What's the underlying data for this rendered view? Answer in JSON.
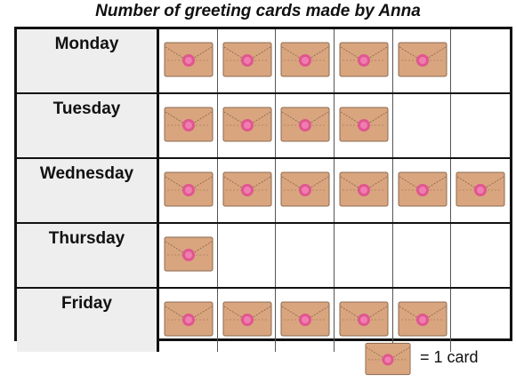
{
  "title": "Number of greeting cards made by Anna",
  "legend": {
    "text": "= 1 card",
    "icon": "envelope-icon"
  },
  "colors": {
    "envelope": "#d9a57f",
    "seal": "#e0568f",
    "stroke": "#8a6a4f",
    "day_bg": "#eeeeee"
  },
  "chart_data": {
    "type": "table",
    "kind": "pictograph",
    "title": "Number of greeting cards made by Anna",
    "categories": [
      "Monday",
      "Tuesday",
      "Wednesday",
      "Thursday",
      "Friday"
    ],
    "values": [
      5,
      4,
      6,
      1,
      5
    ],
    "key": "= 1 card",
    "max_columns": 6
  }
}
